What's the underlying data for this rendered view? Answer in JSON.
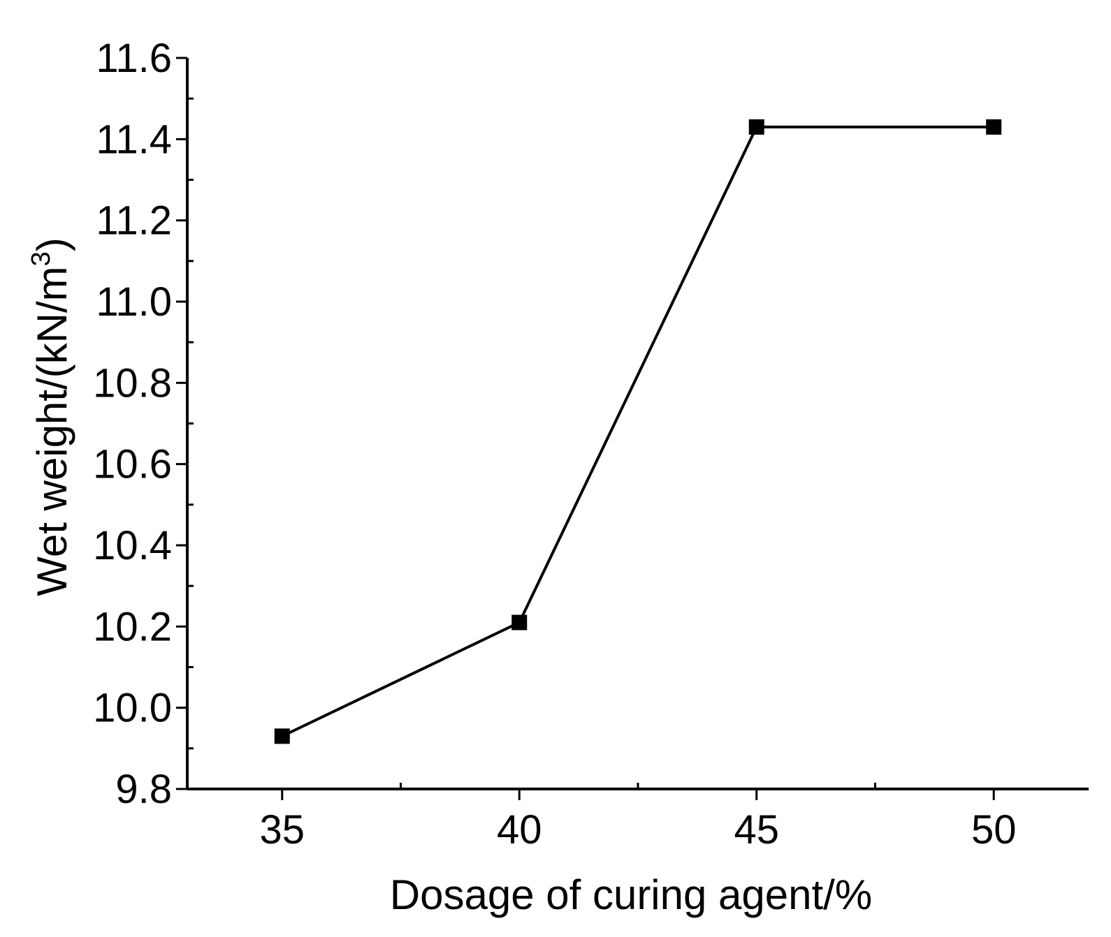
{
  "chart_data": {
    "type": "line",
    "title": "",
    "xlabel": "Dosage of curing agent/%",
    "ylabel_main": "Wet weight/(kN/m",
    "ylabel_sup": "3",
    "ylabel_close": ")",
    "xlim": [
      33,
      52
    ],
    "ylim": [
      9.8,
      11.6
    ],
    "x_ticks": [
      35,
      40,
      45,
      50
    ],
    "x_tick_labels": [
      "35",
      "40",
      "45",
      "50"
    ],
    "x_minor_ticks": [
      37.5,
      42.5,
      47.5
    ],
    "y_ticks": [
      9.8,
      10.0,
      10.2,
      10.4,
      10.6,
      10.8,
      11.0,
      11.2,
      11.4,
      11.6
    ],
    "y_tick_labels": [
      "9.8",
      "10.0",
      "10.2",
      "10.4",
      "10.6",
      "10.8",
      "11.0",
      "11.2",
      "11.4",
      "11.6"
    ],
    "y_minor_ticks": [
      9.9,
      10.1,
      10.3,
      10.5,
      10.7,
      10.9,
      11.1,
      11.3,
      11.5
    ],
    "grid": false,
    "legend": "none",
    "series": [
      {
        "x": [
          35,
          40,
          45,
          50
        ],
        "values": [
          9.93,
          10.21,
          11.43,
          11.43
        ],
        "marker": "square",
        "color": "#000000"
      }
    ]
  }
}
